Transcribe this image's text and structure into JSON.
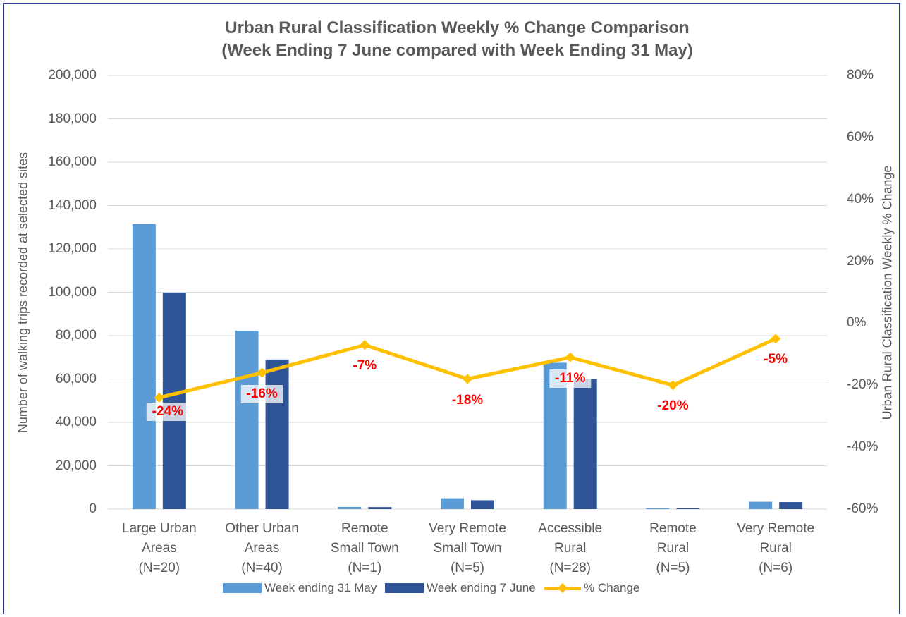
{
  "chart_data": {
    "type": "bar",
    "title": "Urban Rural Classification Weekly % Change Comparison\n(Week Ending 7 June compared with Week Ending 31 May)",
    "y_label": "Number of walking trips recorded at selected sites",
    "y2_label": "Urban Rural Classification Weekly % Change",
    "categories": [
      "Large Urban\nAreas\n(N=20)",
      "Other Urban\nAreas\n(N=40)",
      "Remote\nSmall Town\n(N=1)",
      "Very Remote\nSmall Town\n(N=5)",
      "Accessible\nRural\n(N=28)",
      "Remote\nRural\n(N=5)",
      "Very Remote\nRural\n(N=6)"
    ],
    "series": [
      {
        "name": "Week ending 31 May",
        "type": "bar",
        "color": "#5b9bd5",
        "values": [
          131500,
          82300,
          1000,
          5000,
          67500,
          600,
          3400
        ]
      },
      {
        "name": "Week ending 7 June",
        "type": "bar",
        "color": "#2f5597",
        "values": [
          99800,
          69000,
          930,
          4100,
          60000,
          480,
          3230
        ]
      },
      {
        "name": "% Change",
        "type": "line",
        "axis": "y2",
        "color": "#ffc000",
        "values": [
          -24,
          -16,
          -7,
          -18,
          -11,
          -20,
          -5
        ],
        "value_labels": [
          "-24%",
          "-16%",
          "-7%",
          "-18%",
          "-11%",
          "-20%",
          "-5%"
        ]
      }
    ],
    "ylim": [
      0,
      200000
    ],
    "yticks": [
      0,
      {
        "value": 20000,
        "label": "20,000"
      },
      {
        "value": 40000,
        "label": "40,000"
      },
      {
        "value": 60000,
        "label": "60,000"
      },
      {
        "value": 80000,
        "label": "80,000"
      },
      {
        "value": 100000,
        "label": "100,000"
      },
      {
        "value": 120000,
        "label": "120,000"
      },
      {
        "value": 140000,
        "label": "140,000"
      },
      {
        "value": 160000,
        "label": "160,000"
      },
      {
        "value": 180000,
        "label": "180,000"
      },
      {
        "value": 200000,
        "label": "200,000"
      }
    ],
    "y2lim": [
      -60,
      80
    ],
    "y2ticks": [
      {
        "value": -60,
        "label": "-60%"
      },
      {
        "value": -40,
        "label": "-40%"
      },
      {
        "value": -20,
        "label": "-20%"
      },
      {
        "value": 0,
        "label": "0%"
      },
      {
        "value": 20,
        "label": "20%"
      },
      {
        "value": 40,
        "label": "40%"
      },
      {
        "value": 60,
        "label": "60%"
      },
      {
        "value": 80,
        "label": "80%"
      }
    ],
    "grid": true,
    "legend": "bottom"
  }
}
